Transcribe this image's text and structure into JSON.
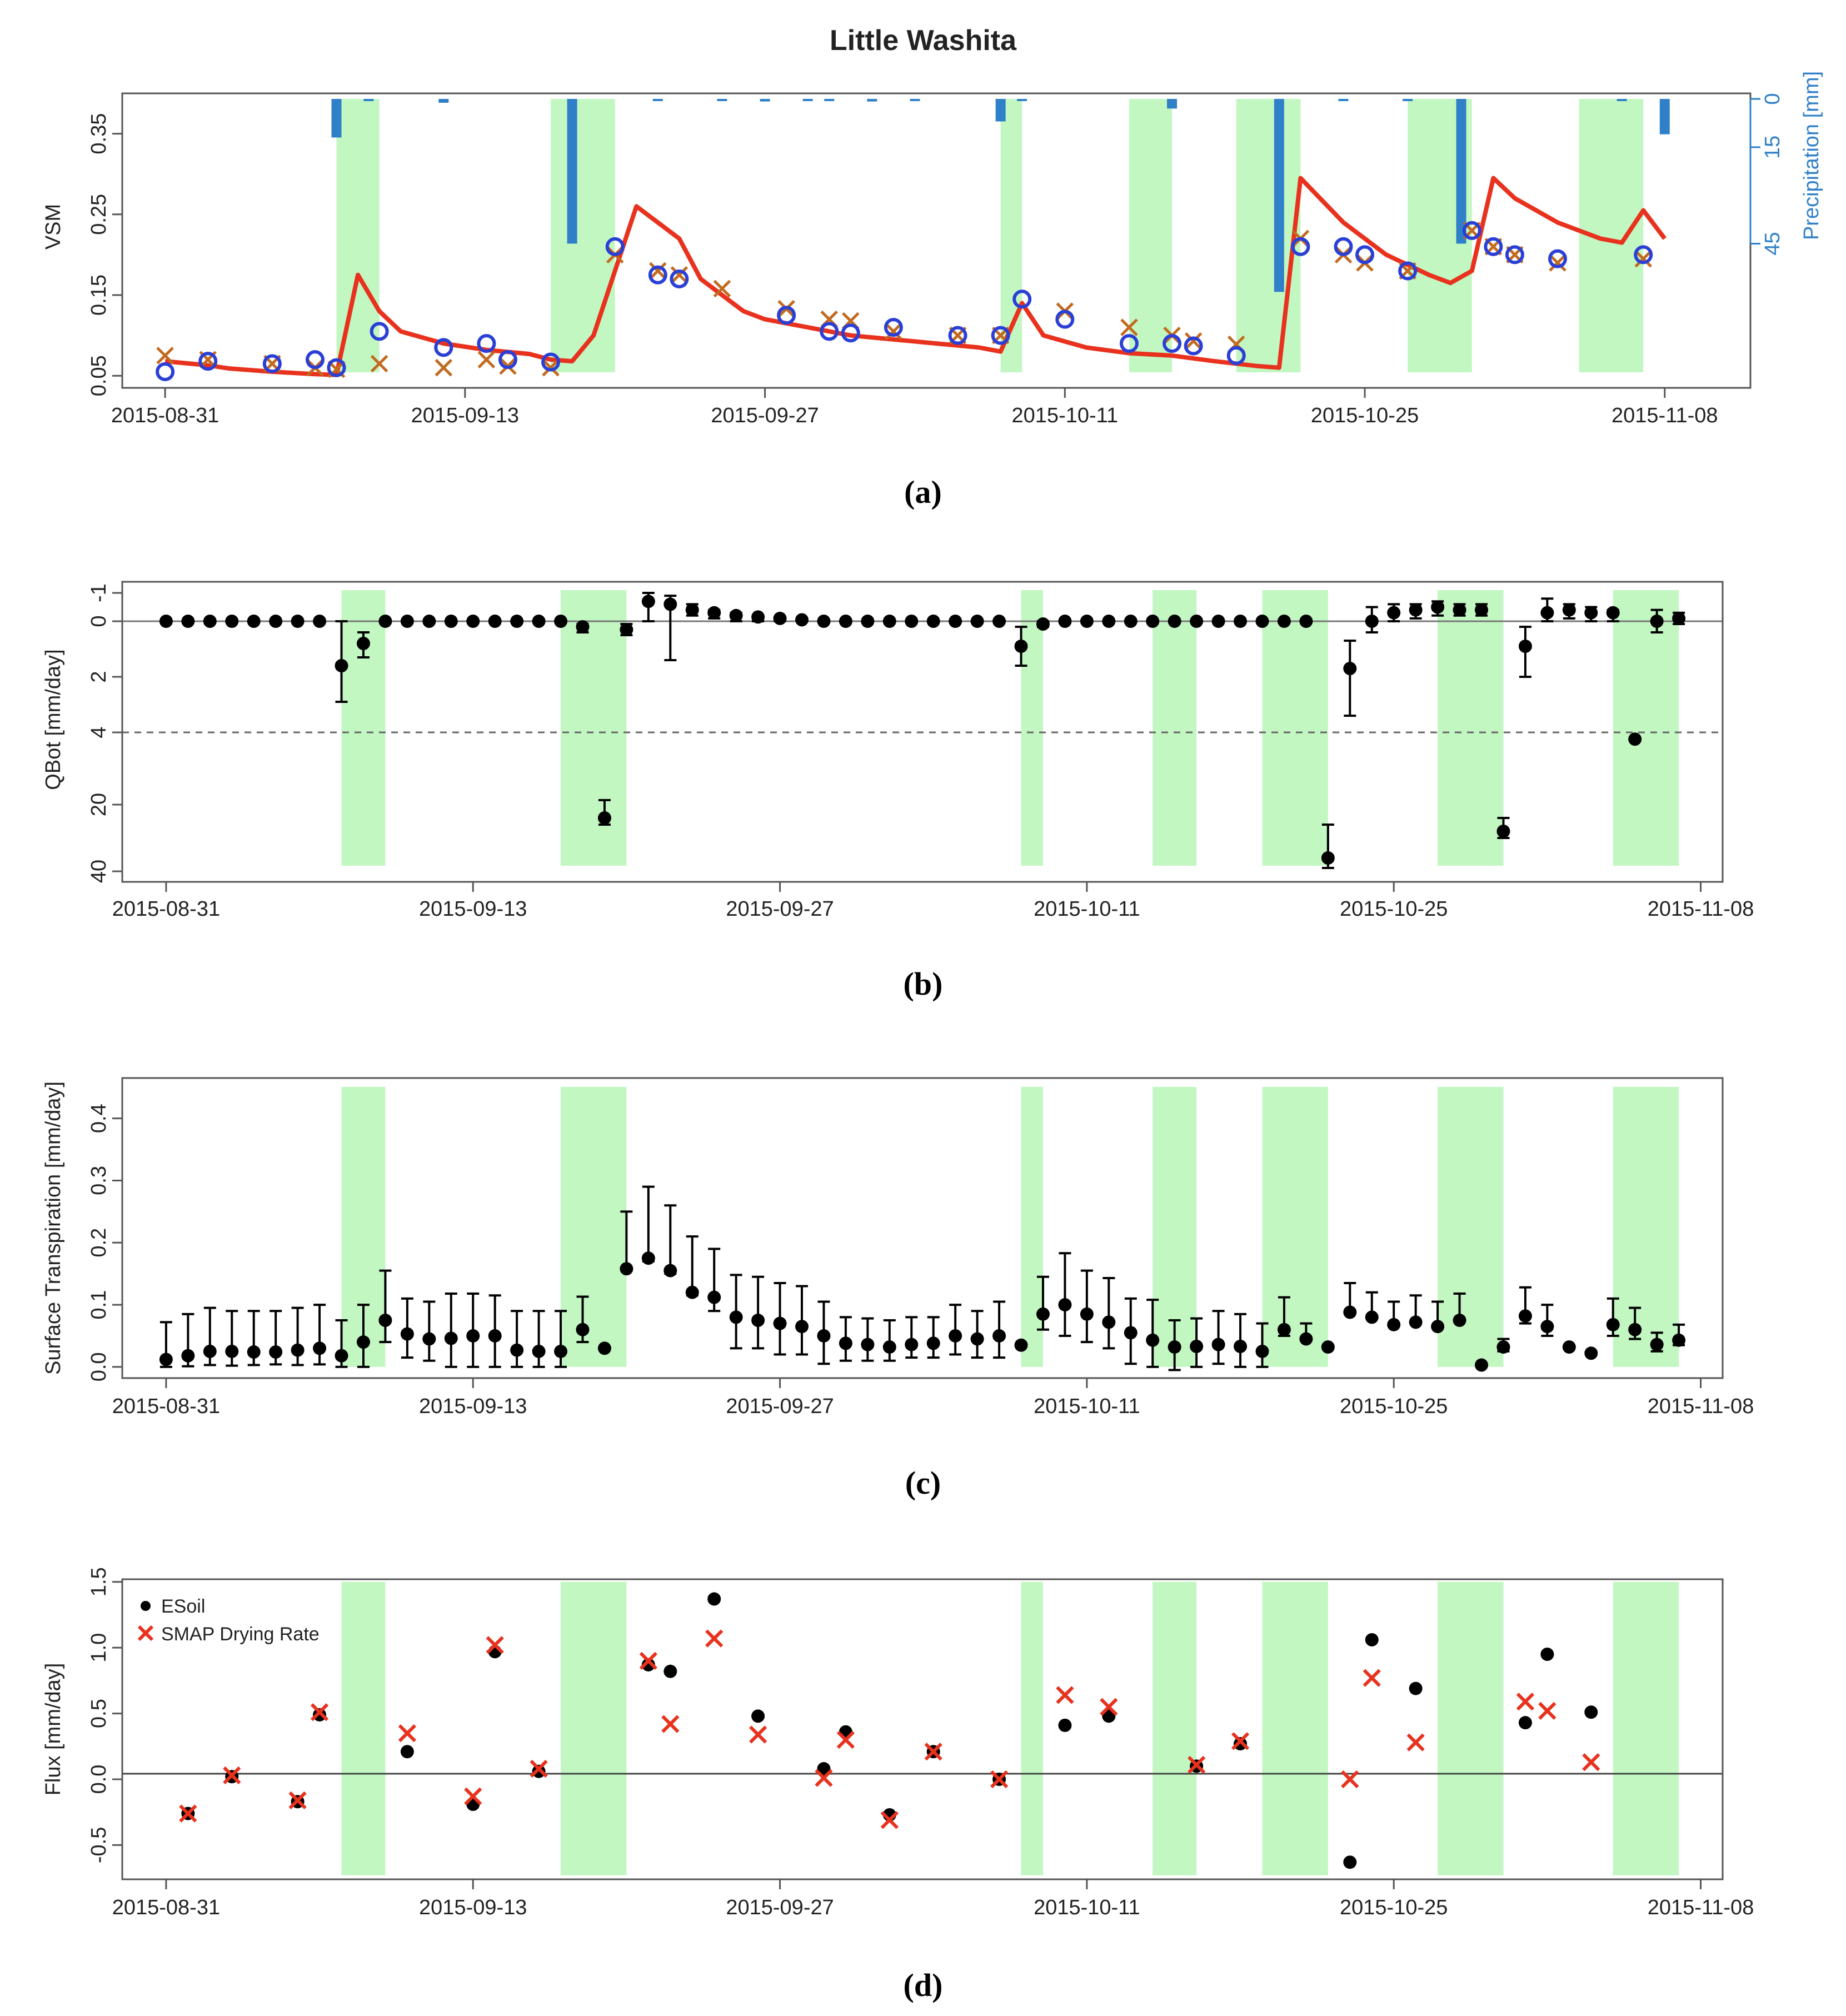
{
  "figure_title": "Little Washita",
  "panel_labels": [
    "(a)",
    "(b)",
    "(c)",
    "(d)"
  ],
  "date_ticks": [
    "2015-08-31",
    "2015-09-13",
    "2015-09-27",
    "2015-10-11",
    "2015-10-25",
    "2015-11-08"
  ],
  "colors": {
    "shade": "#c2f7c2",
    "line": "#e8321e",
    "circle": "#2a3fd6",
    "cross": "#c26a1f",
    "precip": "#2f80c8",
    "dots": "#000000",
    "smap_cross": "#e8321e"
  },
  "chart_data": [
    {
      "id": "a",
      "type": "line",
      "title": "Little Washita",
      "ylabel": "VSM",
      "ylabel_right": "Precipitation [mm]",
      "ylim": [
        0.035,
        0.4
      ],
      "yticks": [
        "0.05",
        "0.15",
        "0.25",
        "0.35"
      ],
      "yticks_right": [
        "0",
        "15",
        "45"
      ],
      "xlim": [
        -2,
        74
      ],
      "shaded_day_ranges": [
        [
          8,
          10
        ],
        [
          18,
          21
        ],
        [
          39,
          40
        ],
        [
          45,
          47
        ],
        [
          50,
          53
        ],
        [
          58,
          61
        ],
        [
          66,
          69
        ]
      ],
      "series_line": {
        "name": "Model VSM",
        "x": [
          0,
          2,
          3,
          5,
          7,
          8,
          9,
          10,
          11,
          13,
          15,
          17,
          18,
          19,
          20,
          22,
          24,
          25,
          27,
          28,
          30,
          32,
          34,
          36,
          38,
          39,
          40,
          41,
          43,
          45,
          47,
          49,
          51,
          52,
          53,
          55,
          57,
          59,
          60,
          61,
          62,
          63,
          65,
          67,
          68,
          69,
          70
        ],
        "values": [
          0.068,
          0.063,
          0.059,
          0.055,
          0.052,
          0.051,
          0.175,
          0.13,
          0.105,
          0.09,
          0.082,
          0.077,
          0.07,
          0.068,
          0.1,
          0.26,
          0.22,
          0.17,
          0.13,
          0.12,
          0.11,
          0.1,
          0.095,
          0.09,
          0.085,
          0.08,
          0.14,
          0.1,
          0.085,
          0.078,
          0.075,
          0.068,
          0.062,
          0.06,
          0.295,
          0.24,
          0.2,
          0.175,
          0.165,
          0.18,
          0.295,
          0.27,
          0.24,
          0.22,
          0.215,
          0.255,
          0.22
        ]
      },
      "series_circles": {
        "name": "Observed (circles)",
        "x": [
          0,
          2,
          5,
          7,
          8,
          10,
          13,
          15,
          16,
          18,
          21,
          23,
          24,
          29,
          31,
          32,
          34,
          37,
          39,
          40,
          42,
          45,
          47,
          48,
          50,
          53,
          55,
          56,
          58,
          61,
          62,
          63,
          65,
          69
        ],
        "values": [
          0.055,
          0.068,
          0.065,
          0.07,
          0.06,
          0.105,
          0.085,
          0.09,
          0.07,
          0.067,
          0.21,
          0.175,
          0.17,
          0.125,
          0.105,
          0.103,
          0.11,
          0.1,
          0.1,
          0.145,
          0.12,
          0.09,
          0.09,
          0.087,
          0.075,
          0.21,
          0.21,
          0.2,
          0.18,
          0.23,
          0.21,
          0.2,
          0.195,
          0.2
        ]
      },
      "series_crosses": {
        "name": "Observed (crosses)",
        "x": [
          0,
          2,
          5,
          7,
          8,
          10,
          13,
          15,
          16,
          18,
          21,
          23,
          24,
          26,
          29,
          31,
          32,
          34,
          37,
          39,
          42,
          45,
          47,
          48,
          50,
          53,
          55,
          56,
          58,
          61,
          62,
          63,
          65,
          69
        ],
        "values": [
          0.075,
          0.07,
          0.065,
          0.06,
          0.058,
          0.065,
          0.06,
          0.07,
          0.062,
          0.06,
          0.2,
          0.18,
          0.175,
          0.158,
          0.133,
          0.12,
          0.118,
          0.105,
          0.1,
          0.1,
          0.13,
          0.11,
          0.1,
          0.093,
          0.089,
          0.22,
          0.2,
          0.19,
          0.18,
          0.23,
          0.21,
          0.2,
          0.19,
          0.195
        ]
      },
      "series_precip": {
        "name": "Precipitation [mm]",
        "ylim_mm": [
          0,
          66
        ],
        "x": [
          8,
          9.5,
          13,
          19,
          23,
          26,
          28,
          30,
          31,
          33,
          35,
          39,
          40,
          47,
          52,
          55,
          58,
          60.5,
          68,
          70
        ],
        "values": [
          12,
          0.6,
          1.2,
          45,
          0.4,
          0.6,
          0.8,
          0.5,
          0.6,
          0.8,
          0.6,
          7,
          0.4,
          3,
          60,
          0.5,
          0.6,
          45,
          0.5,
          11
        ]
      }
    },
    {
      "id": "b",
      "type": "scatter",
      "ylabel": "QBot [mm/day]",
      "yticks": [
        "-1",
        "0",
        "2",
        "4",
        "20",
        "40"
      ],
      "tick_values": [
        -1,
        0,
        2,
        4,
        20,
        40
      ],
      "xlim": [
        -2,
        71
      ],
      "shaded_day_ranges": [
        [
          8,
          10
        ],
        [
          18,
          21
        ],
        [
          39,
          40
        ],
        [
          45,
          47
        ],
        [
          50,
          53
        ],
        [
          58,
          61
        ],
        [
          66,
          69
        ]
      ],
      "reference_line": 0,
      "dashed_line": 4,
      "x": [
        0,
        1,
        2,
        3,
        4,
        5,
        6,
        7,
        8,
        9,
        10,
        11,
        12,
        13,
        14,
        15,
        16,
        17,
        18,
        19,
        20,
        21,
        22,
        23,
        24,
        25,
        26,
        27,
        28,
        29,
        30,
        31,
        32,
        33,
        34,
        35,
        36,
        37,
        38,
        39,
        40,
        41,
        42,
        43,
        44,
        45,
        46,
        47,
        48,
        49,
        50,
        51,
        52,
        53,
        54,
        55,
        56,
        57,
        58,
        59,
        60,
        61,
        62,
        63,
        64,
        65,
        66,
        67,
        68,
        69
      ],
      "values": [
        0,
        0,
        0,
        0,
        0,
        0,
        0,
        0,
        1.6,
        0.8,
        0,
        0,
        0,
        0,
        0,
        0,
        0,
        0,
        0,
        0.2,
        24,
        0.3,
        -0.7,
        -0.6,
        -0.4,
        -0.3,
        -0.2,
        -0.15,
        -0.1,
        -0.05,
        0,
        0,
        0,
        0,
        0,
        0,
        0,
        0,
        0,
        0.9,
        0.1,
        0,
        0,
        0,
        0,
        0,
        0,
        0,
        0,
        0,
        0,
        0,
        0,
        36,
        1.7,
        0,
        -0.3,
        -0.4,
        -0.5,
        -0.4,
        -0.4,
        28,
        0.9,
        -0.3,
        -0.4,
        -0.3,
        -0.3,
        5.5,
        0,
        -0.1
      ],
      "err_low": [
        0,
        0,
        0,
        0,
        0,
        0,
        0,
        0,
        0,
        0.4,
        0,
        0,
        0,
        0,
        0,
        0,
        0,
        0,
        0,
        0.1,
        19,
        0.1,
        -1,
        -0.9,
        -0.6,
        -0.4,
        -0.3,
        -0.2,
        -0.15,
        -0.1,
        0,
        0,
        0,
        0,
        0,
        0,
        0,
        0,
        0,
        0.2,
        0,
        0,
        0,
        0,
        0,
        0,
        0,
        0,
        0,
        0,
        0,
        0,
        0,
        26,
        0.7,
        -0.5,
        -0.6,
        -0.6,
        -0.7,
        -0.6,
        -0.6,
        24,
        0.2,
        -0.8,
        -0.6,
        -0.5,
        -0.4,
        5.5,
        -0.4,
        -0.3
      ],
      "err_high": [
        0,
        0,
        0,
        0,
        0,
        0,
        0,
        0,
        2.9,
        1.3,
        0,
        0,
        0,
        0,
        0,
        0,
        0,
        0,
        0,
        0.4,
        26,
        0.5,
        0,
        1.4,
        -0.2,
        -0.1,
        0,
        0,
        0,
        0,
        0,
        0,
        0,
        0,
        0,
        0,
        0,
        0,
        0,
        1.6,
        0.2,
        0,
        0,
        0,
        0,
        0,
        0,
        0,
        0,
        0,
        0,
        0,
        0,
        39,
        3.4,
        0.4,
        0,
        -0.1,
        -0.2,
        -0.2,
        -0.2,
        30,
        2,
        0,
        -0.1,
        0,
        0,
        5.5,
        0.4,
        0.1
      ]
    },
    {
      "id": "c",
      "type": "scatter",
      "ylabel": "Surface Transpiration [mm/day]",
      "yticks": [
        "0.0",
        "0.1",
        "0.2",
        "0.3",
        "0.4"
      ],
      "ylim": [
        -0.018,
        0.465
      ],
      "xlim": [
        -2,
        71
      ],
      "shaded_day_ranges": [
        [
          8,
          10
        ],
        [
          18,
          21
        ],
        [
          39,
          40
        ],
        [
          45,
          47
        ],
        [
          50,
          53
        ],
        [
          58,
          61
        ],
        [
          66,
          69
        ]
      ],
      "x": [
        0,
        1,
        2,
        3,
        4,
        5,
        6,
        7,
        8,
        9,
        10,
        11,
        12,
        13,
        14,
        15,
        16,
        17,
        18,
        19,
        20,
        21,
        22,
        23,
        24,
        25,
        26,
        27,
        28,
        29,
        30,
        31,
        32,
        33,
        34,
        35,
        36,
        37,
        38,
        39,
        40,
        41,
        42,
        43,
        44,
        45,
        46,
        47,
        48,
        49,
        50,
        51,
        52,
        53,
        54,
        55,
        56,
        57,
        58,
        59,
        60,
        61,
        62,
        63,
        64,
        65,
        66,
        67,
        68,
        69
      ],
      "values": [
        0.012,
        0.018,
        0.025,
        0.025,
        0.024,
        0.024,
        0.027,
        0.03,
        0.018,
        0.04,
        0.075,
        0.053,
        0.045,
        0.046,
        0.05,
        0.05,
        0.027,
        0.025,
        0.025,
        0.06,
        0.03,
        0.158,
        0.175,
        0.155,
        0.12,
        0.112,
        0.08,
        0.075,
        0.07,
        0.065,
        0.05,
        0.038,
        0.036,
        0.032,
        0.036,
        0.038,
        0.05,
        0.045,
        0.05,
        0.035,
        0.085,
        0.1,
        0.085,
        0.072,
        0.055,
        0.043,
        0.032,
        0.033,
        0.036,
        0.033,
        0.025,
        0.06,
        0.045,
        0.032,
        0.088,
        0.08,
        0.068,
        0.072,
        0.065,
        0.075,
        0.003,
        0.032,
        0.082,
        0.065,
        0.032,
        0.022,
        0.068,
        0.06,
        0.036,
        0.043
      ],
      "err_low": [
        0,
        0.001,
        0.003,
        0.002,
        0.003,
        0.004,
        0.003,
        0.004,
        0,
        0,
        0.04,
        0.015,
        0.01,
        0,
        0,
        0,
        0,
        0,
        0,
        0.04,
        0.03,
        0.155,
        0.17,
        0.15,
        0.115,
        0.09,
        0.03,
        0.03,
        0.02,
        0.02,
        0.005,
        0.01,
        0.01,
        0.01,
        0.015,
        0.015,
        0.02,
        0.015,
        0.015,
        0.035,
        0.06,
        0.05,
        0.04,
        0.03,
        0.005,
        0,
        -0.005,
        0,
        0.005,
        0,
        0,
        0.05,
        0.045,
        0.032,
        0.088,
        0.08,
        0.068,
        0.072,
        0.065,
        0.075,
        0.003,
        0.025,
        0.07,
        0.05,
        0.032,
        0.022,
        0.05,
        0.045,
        0.025,
        0.035
      ],
      "err_high": [
        0.072,
        0.085,
        0.095,
        0.09,
        0.09,
        0.09,
        0.095,
        0.1,
        0.075,
        0.1,
        0.155,
        0.11,
        0.105,
        0.118,
        0.118,
        0.115,
        0.09,
        0.09,
        0.09,
        0.113,
        0.03,
        0.25,
        0.29,
        0.26,
        0.21,
        0.19,
        0.148,
        0.145,
        0.135,
        0.13,
        0.105,
        0.08,
        0.078,
        0.075,
        0.08,
        0.08,
        0.1,
        0.09,
        0.105,
        0.035,
        0.145,
        0.183,
        0.155,
        0.143,
        0.11,
        0.108,
        0.075,
        0.078,
        0.09,
        0.085,
        0.07,
        0.112,
        0.07,
        0.032,
        0.135,
        0.12,
        0.105,
        0.115,
        0.105,
        0.118,
        0.003,
        0.045,
        0.128,
        0.1,
        0.032,
        0.022,
        0.11,
        0.095,
        0.055,
        0.068
      ]
    },
    {
      "id": "d",
      "type": "scatter",
      "ylabel": "Flux [mm/day]",
      "yticks": [
        "-0.5",
        "0.0",
        "0.5",
        "1.0",
        "1.5"
      ],
      "ylim": [
        -0.76,
        1.52
      ],
      "xlim": [
        -2,
        71
      ],
      "shaded_day_ranges": [
        [
          8,
          10
        ],
        [
          18,
          21
        ],
        [
          39,
          40
        ],
        [
          45,
          47
        ],
        [
          50,
          53
        ],
        [
          58,
          61
        ],
        [
          66,
          69
        ]
      ],
      "reference_line": 0,
      "legend": [
        "ESoil",
        "SMAP Drying Rate"
      ],
      "esoil": {
        "x": [
          1,
          3,
          6,
          7,
          11,
          14,
          15,
          17,
          22,
          23,
          25,
          27,
          30,
          31,
          33,
          35,
          38,
          41,
          43,
          47,
          49,
          54,
          55,
          57,
          62,
          63,
          65
        ],
        "values": [
          -0.26,
          0.02,
          -0.17,
          0.49,
          0.21,
          -0.19,
          0.97,
          0.06,
          0.87,
          0.82,
          1.37,
          0.48,
          0.08,
          0.36,
          -0.27,
          0.21,
          0.0,
          0.41,
          0.48,
          0.1,
          0.27,
          -0.63,
          1.06,
          0.69,
          0.43,
          0.95,
          0.51
        ]
      },
      "smap": {
        "x": [
          1,
          3,
          6,
          7,
          11,
          14,
          15,
          17,
          22,
          23,
          25,
          27,
          30,
          31,
          33,
          35,
          38,
          41,
          43,
          47,
          49,
          54,
          55,
          57,
          62,
          63,
          65
        ],
        "values": [
          -0.26,
          0.03,
          -0.16,
          0.51,
          0.35,
          -0.13,
          1.02,
          0.08,
          0.9,
          0.42,
          1.07,
          0.34,
          0.01,
          0.3,
          -0.31,
          0.21,
          0.0,
          0.64,
          0.55,
          0.11,
          0.29,
          0.0,
          0.77,
          0.28,
          0.59,
          0.52,
          0.13
        ]
      }
    }
  ]
}
